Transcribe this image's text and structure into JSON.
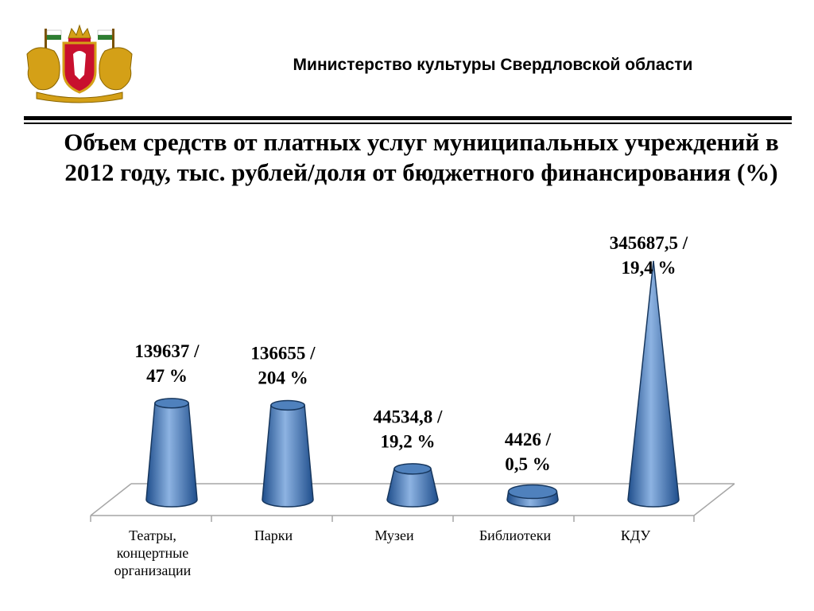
{
  "header": {
    "organization": "Министерство культуры Свердловской области",
    "title": "Объем средств от платных услуг муниципальных учреждений в 2012 году, тыс. рублей/доля от бюджетного финансирования (%)"
  },
  "chart_data": {
    "type": "bar",
    "shape": "cone",
    "title": "Объем средств от платных услуг муниципальных учреждений в 2012 году, тыс. рублей/доля от бюджетного финансирования (%)",
    "categories": [
      "Театры, концертные организации",
      "Парки",
      "Музеи",
      "Библиотеки",
      "КДУ"
    ],
    "values": [
      139637,
      136655,
      44534.8,
      4426,
      345687.5
    ],
    "shares_percent": [
      47,
      204,
      19.2,
      0.5,
      19.4
    ],
    "data_labels": [
      [
        "139637 /",
        "47 %"
      ],
      [
        "136655 /",
        "204 %"
      ],
      [
        "44534,8 /",
        "19,2 %"
      ],
      [
        "4426 /",
        "0,5 %"
      ],
      [
        "345687,5 /",
        "19,4 %"
      ]
    ],
    "category_label_lines": [
      [
        "Театры,",
        "концертные",
        "организации"
      ],
      [
        "Парки"
      ],
      [
        "Музеи"
      ],
      [
        "Библиотеки"
      ],
      [
        "КДУ"
      ]
    ],
    "grid": false,
    "legend": "none",
    "colors": {
      "fill": "#4f81bd",
      "fill_dark": "#1f4e8c",
      "fill_light": "#8db3e2",
      "outline": "#17375e",
      "floor": "#a6a6a6"
    }
  }
}
